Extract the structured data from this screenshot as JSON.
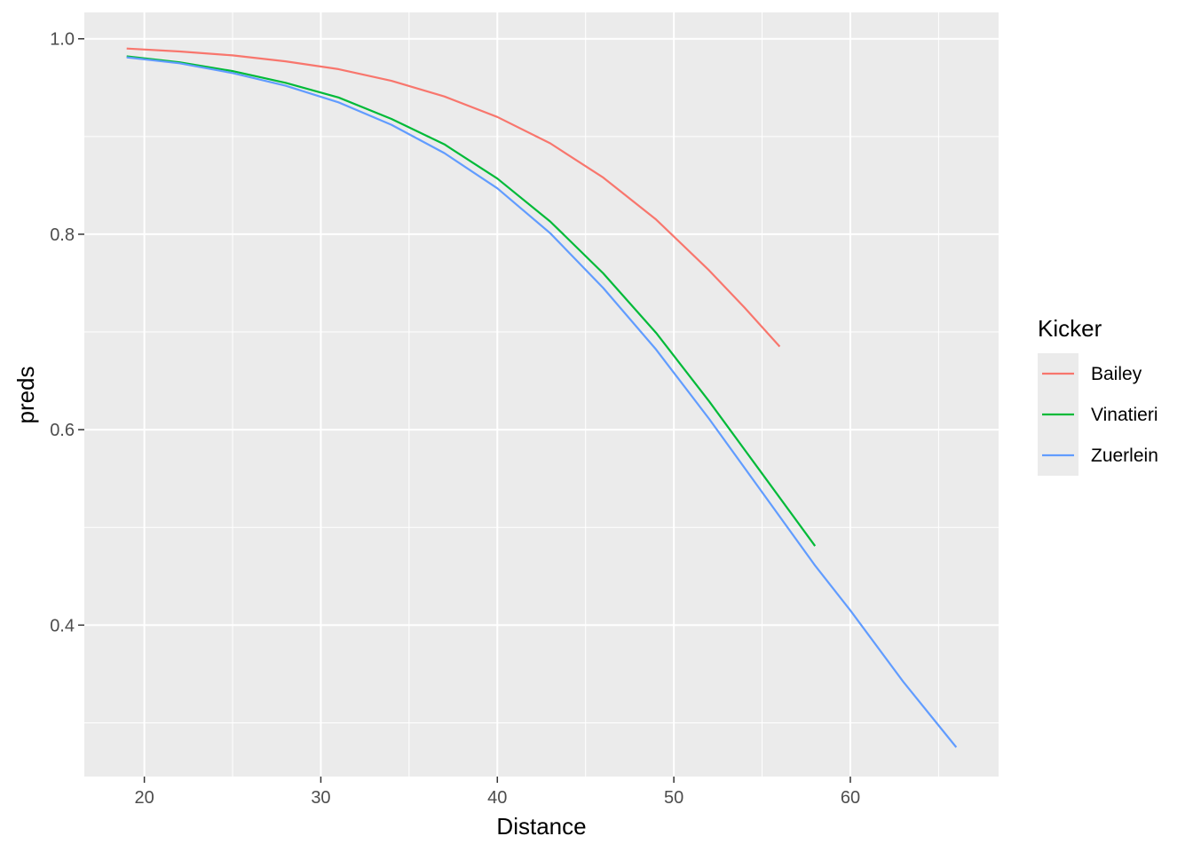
{
  "chart_data": {
    "type": "line",
    "xlabel": "Distance",
    "ylabel": "preds",
    "xlim": [
      16.6,
      68.4
    ],
    "ylim": [
      0.245,
      1.027
    ],
    "x_ticks": [
      20,
      30,
      40,
      50,
      60
    ],
    "x_tick_labels": [
      "20",
      "30",
      "40",
      "50",
      "60"
    ],
    "y_ticks": [
      0.4,
      0.6,
      0.8,
      1.0
    ],
    "y_tick_labels": [
      "0.4",
      "0.6",
      "0.8",
      "1.0"
    ],
    "legend_title": "Kicker",
    "legend_position": "right",
    "grid": true,
    "series": [
      {
        "name": "Bailey",
        "color": "#F8766D",
        "x": [
          19,
          22,
          25,
          28,
          31,
          34,
          37,
          40,
          43,
          46,
          49,
          52,
          54,
          56
        ],
        "y": [
          0.99,
          0.987,
          0.983,
          0.977,
          0.969,
          0.957,
          0.941,
          0.92,
          0.893,
          0.858,
          0.815,
          0.763,
          0.725,
          0.685
        ]
      },
      {
        "name": "Vinatieri",
        "color": "#00BA38",
        "x": [
          19,
          22,
          25,
          28,
          31,
          34,
          37,
          40,
          43,
          46,
          49,
          52,
          55,
          58
        ],
        "y": [
          0.982,
          0.976,
          0.967,
          0.955,
          0.94,
          0.918,
          0.892,
          0.857,
          0.813,
          0.76,
          0.699,
          0.629,
          0.555,
          0.481
        ]
      },
      {
        "name": "Zuerlein",
        "color": "#619CFF",
        "x": [
          19,
          22,
          25,
          28,
          31,
          34,
          37,
          40,
          43,
          46,
          49,
          52,
          55,
          58,
          60,
          63,
          66
        ],
        "y": [
          0.981,
          0.975,
          0.965,
          0.952,
          0.935,
          0.912,
          0.883,
          0.847,
          0.801,
          0.745,
          0.682,
          0.611,
          0.536,
          0.461,
          0.415,
          0.342,
          0.275
        ]
      }
    ]
  }
}
